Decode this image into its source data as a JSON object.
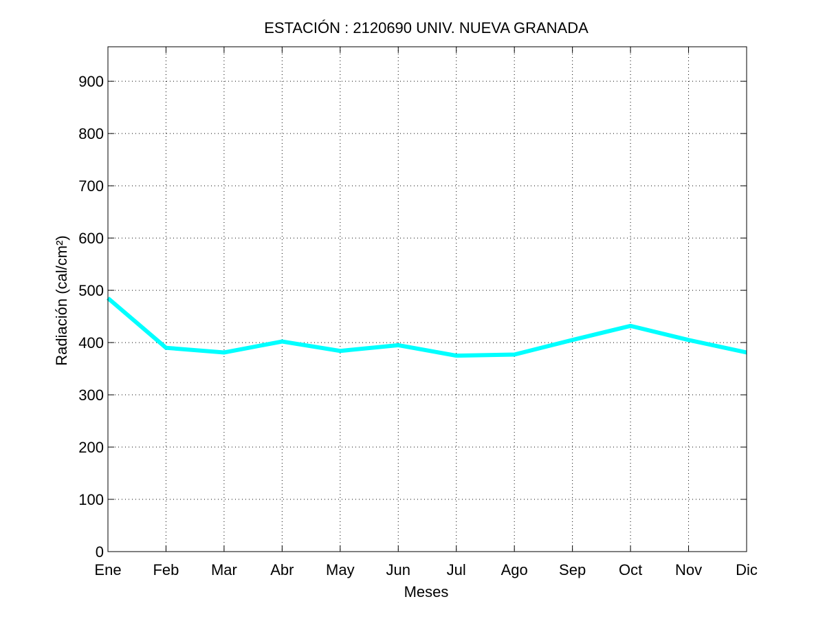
{
  "chart_data": {
    "type": "line",
    "title": "ESTACIÓN :  2120690  UNIV. NUEVA GRANADA",
    "xlabel": "Meses",
    "ylabel": "Radiación (cal/cm²)",
    "categories": [
      "Ene",
      "Feb",
      "Mar",
      "Abr",
      "May",
      "Jun",
      "Jul",
      "Ago",
      "Sep",
      "Oct",
      "Nov",
      "Dic"
    ],
    "series": [
      {
        "values": [
          485,
          390,
          381,
          402,
          384,
          395,
          375,
          377,
          405,
          432,
          405,
          381
        ],
        "color": "#00ffff"
      }
    ],
    "ylim": [
      0,
      966
    ],
    "yticks": [
      0,
      100,
      200,
      300,
      400,
      500,
      600,
      700,
      800,
      900
    ],
    "grid": true,
    "legend": "none"
  }
}
